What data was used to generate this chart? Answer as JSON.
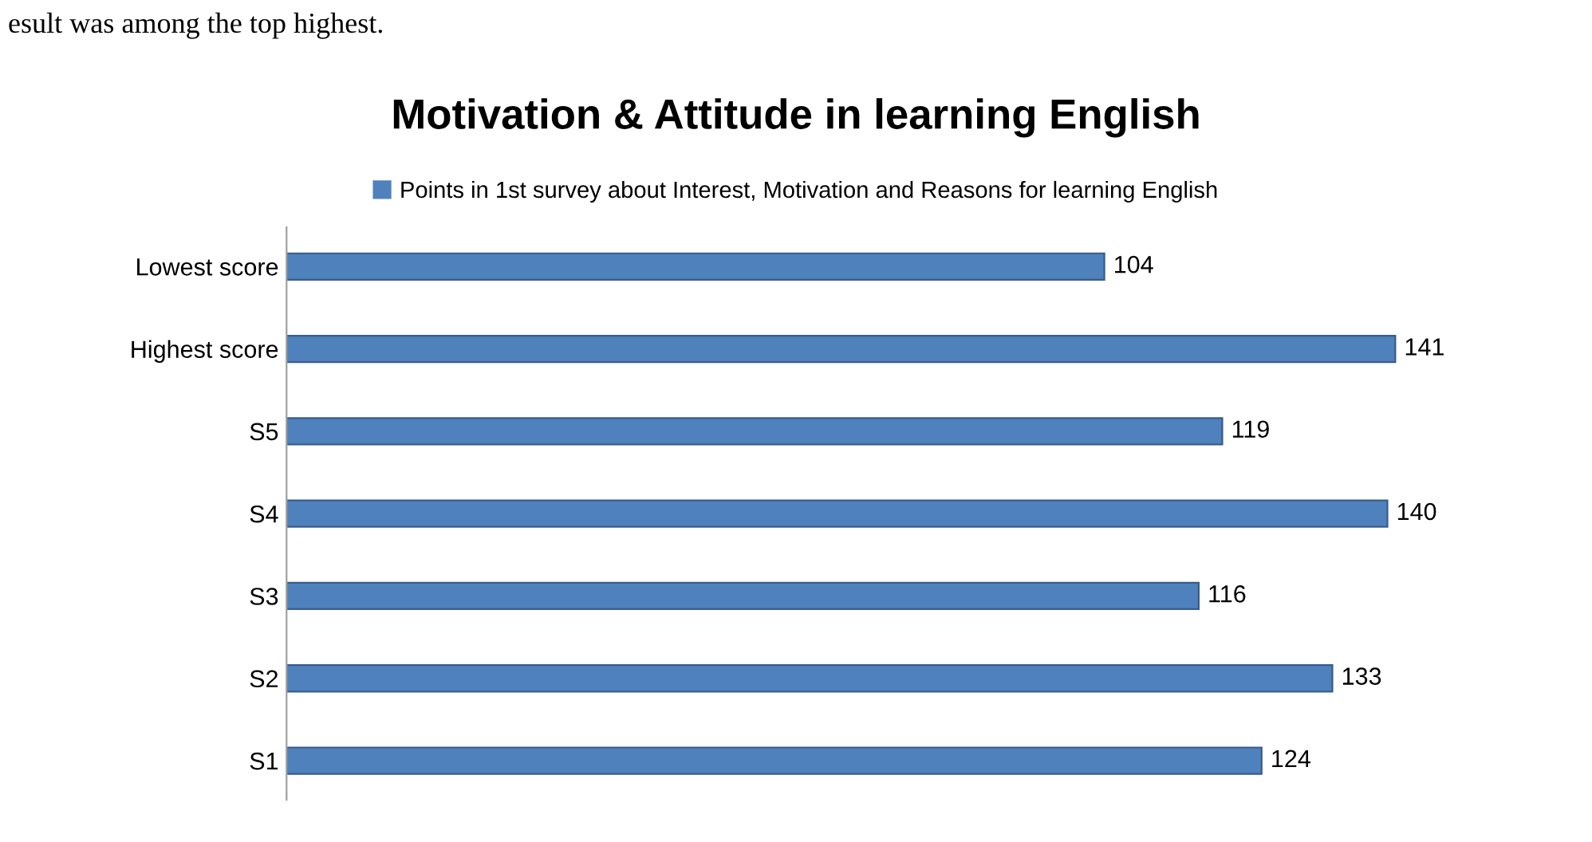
{
  "chart_data": {
    "type": "bar",
    "orientation": "horizontal",
    "title": "Motivation & Attitude in learning English",
    "categories": [
      "Lowest score",
      "Highest score",
      "S5",
      "S4",
      "S3",
      "S2",
      "S1"
    ],
    "series": [
      {
        "name": "Points in 1st survey about Interest, Motivation and Reasons for learning English",
        "color": "#4f81bd",
        "values": [
          104,
          141,
          119,
          140,
          116,
          133,
          124
        ]
      }
    ],
    "data_labels": true,
    "legend": "top",
    "grid": false,
    "tick_labels": "y",
    "annotations": [
      "esult was among the top highest."
    ]
  }
}
